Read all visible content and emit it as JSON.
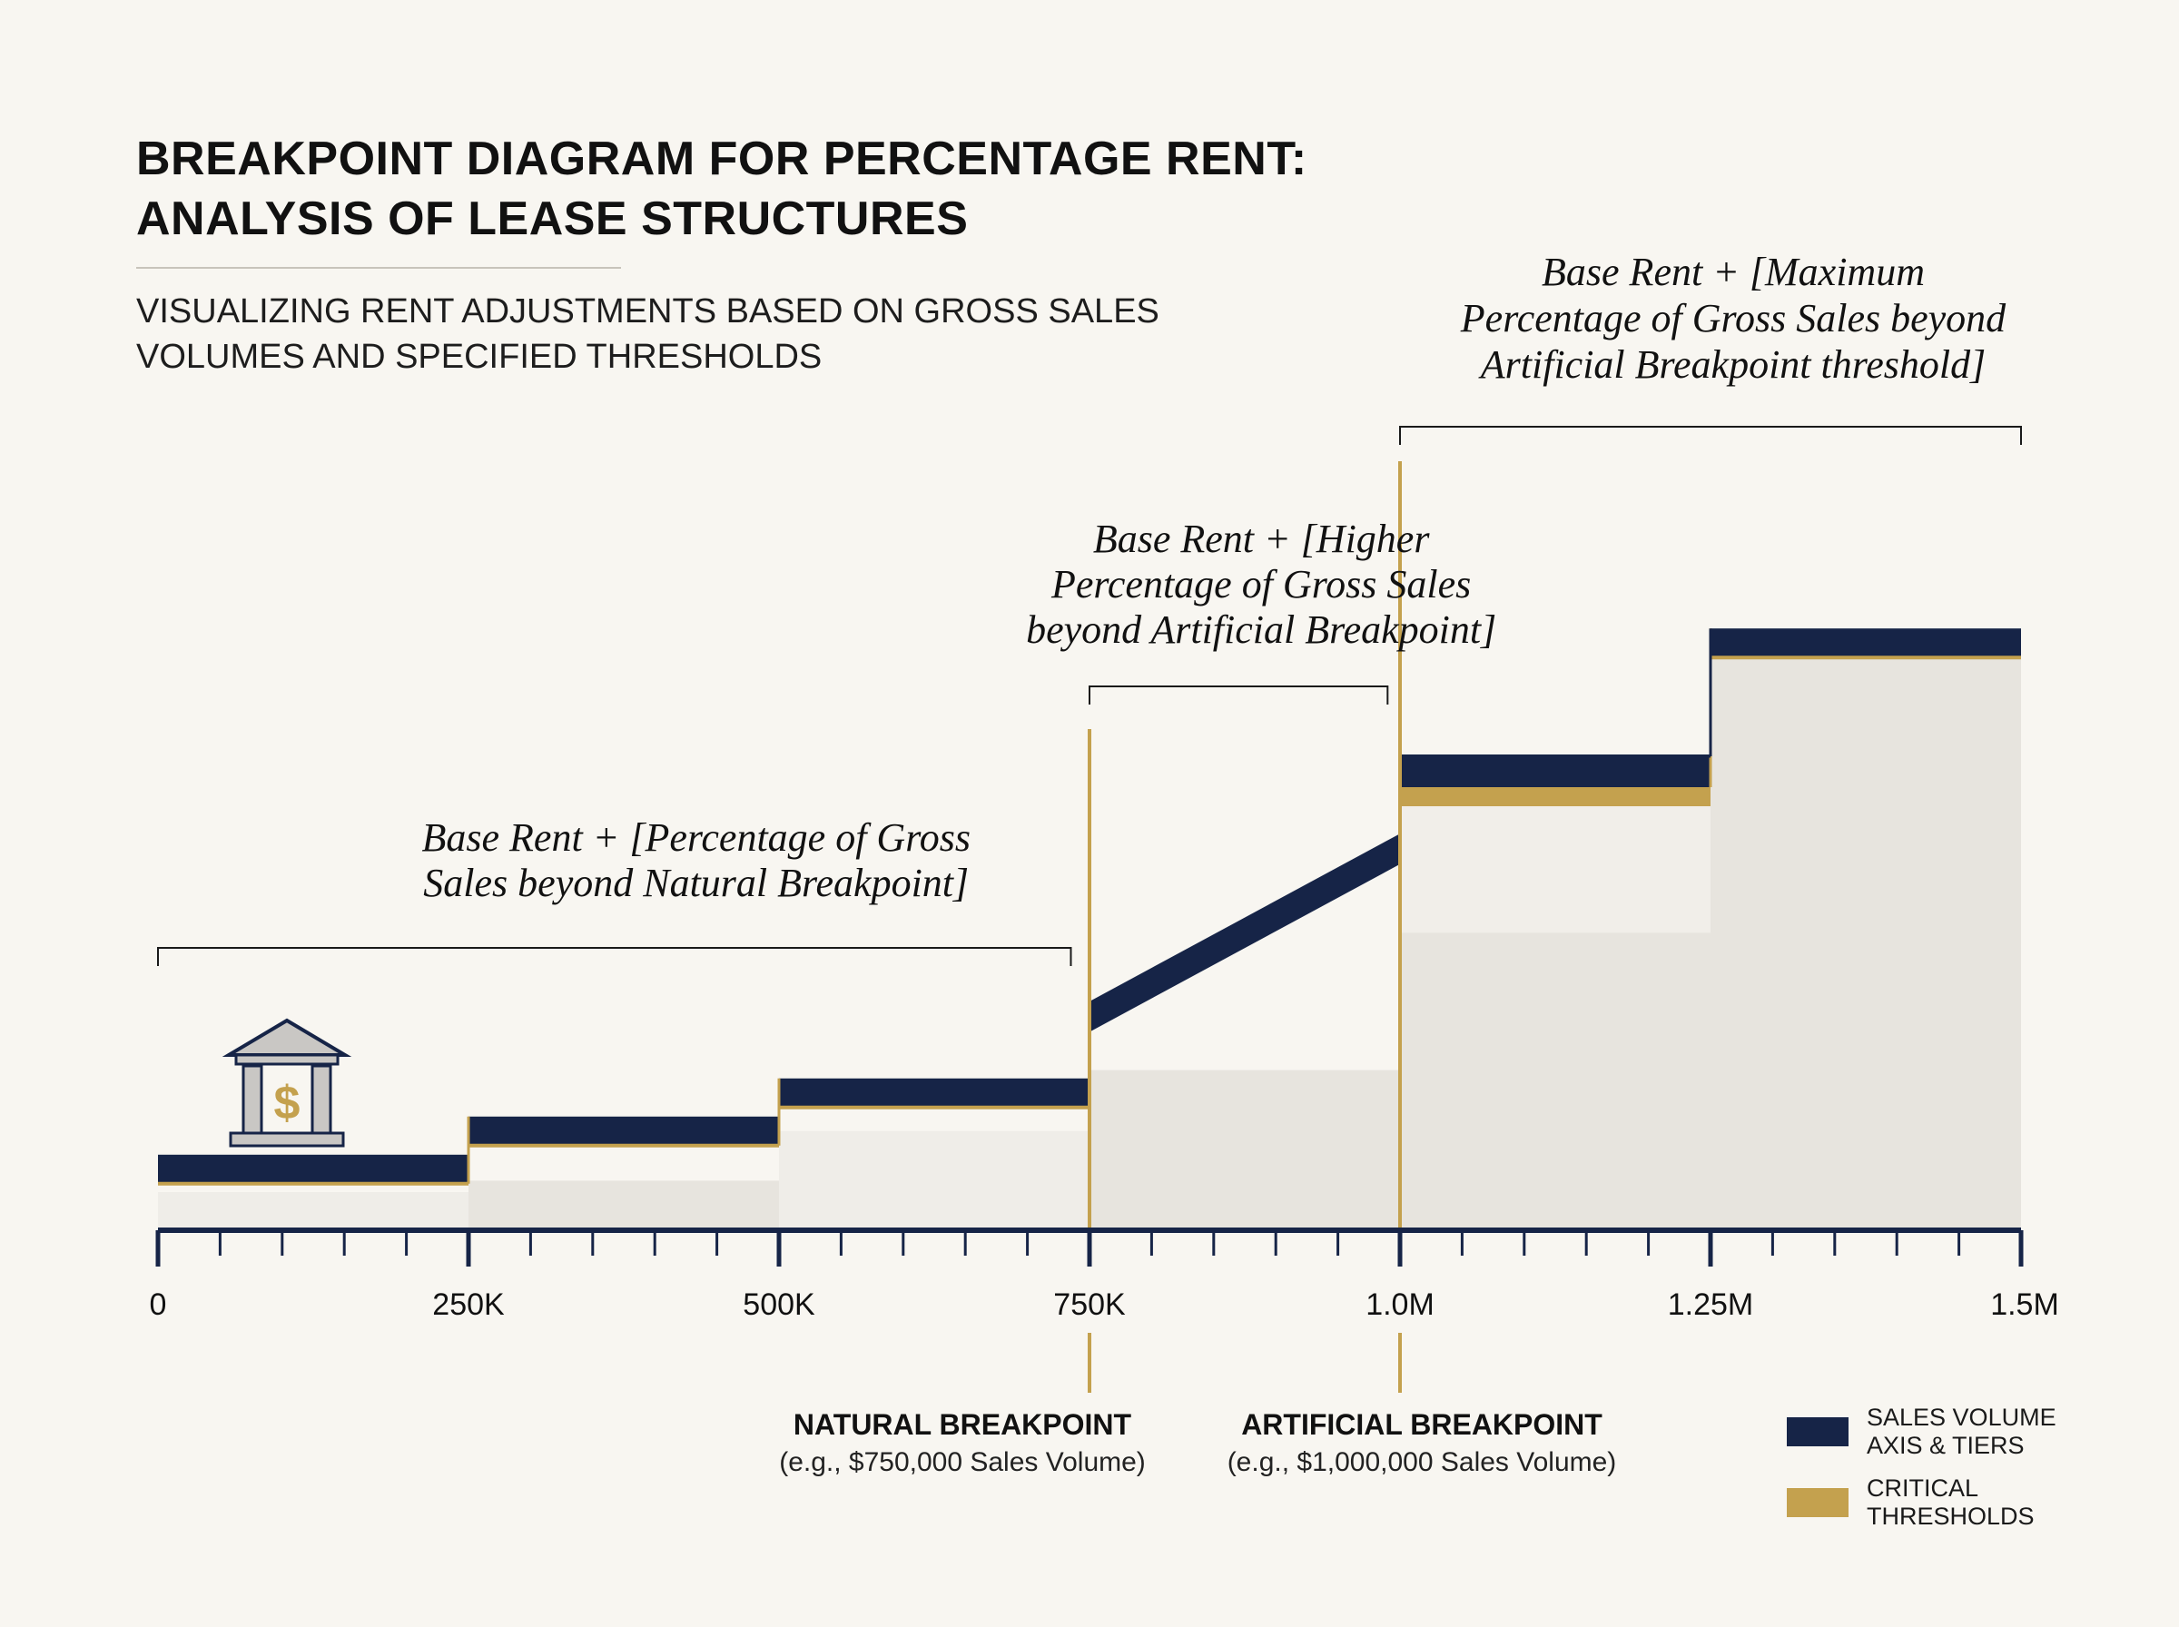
{
  "title_lines": [
    "BREAKPOINT DIAGRAM FOR PERCENTAGE RENT:",
    "ANALYSIS OF LEASE STRUCTURES"
  ],
  "subtitle_lines": [
    "VISUALIZING RENT ADJUSTMENTS BASED ON GROSS SALES",
    "VOLUMES AND SPECIFIED THRESHOLDS"
  ],
  "colors": {
    "background": "#f8f6f1",
    "navy": "#162447",
    "gold": "#c4a14e",
    "fill": "#e7e4de",
    "fill_light": "#efede8"
  },
  "icon": {
    "name": "bank-dollar-icon",
    "glyph": "$"
  },
  "legend": [
    {
      "name": "navy-swatch",
      "color": "#162447",
      "label": "SALES VOLUME AXIS & TIERS"
    },
    {
      "name": "gold-swatch",
      "color": "#c4a14e",
      "label": "CRITICAL THRESHOLDS"
    }
  ],
  "chart_data": {
    "type": "line",
    "x_unit": "gross sales ($)",
    "xlim": [
      0,
      1500000
    ],
    "x_ticks": [
      {
        "value": 0,
        "label": "0"
      },
      {
        "value": 250000,
        "label": "250K"
      },
      {
        "value": 500000,
        "label": "500K"
      },
      {
        "value": 750000,
        "label": "750K"
      },
      {
        "value": 1000000,
        "label": "1.0M"
      },
      {
        "value": 1250000,
        "label": "1.25M"
      },
      {
        "value": 1500000,
        "label": "1.5M"
      }
    ],
    "minor_tick_step": 50000,
    "y_axis_shown": false,
    "ylim": [
      0,
      100
    ],
    "tiers": [
      {
        "from": 0,
        "to": 250000,
        "rent_start": 8,
        "rent_end": 8
      },
      {
        "from": 250000,
        "to": 500000,
        "rent_start": 13,
        "rent_end": 13
      },
      {
        "from": 500000,
        "to": 750000,
        "rent_start": 18,
        "rent_end": 18
      },
      {
        "from": 750000,
        "to": 1000000,
        "rent_start": 28,
        "rent_end": 50
      },
      {
        "from": 1000000,
        "to": 1250000,
        "rent_start": 60,
        "rent_end": 60
      },
      {
        "from": 1250000,
        "to": 1500000,
        "rent_start": 77,
        "rent_end": 77
      }
    ],
    "gold_bands": [
      {
        "from": 1000000,
        "to": 1250000,
        "rent": 57.5
      }
    ],
    "background_fills": [
      {
        "from": 0,
        "to": 250000,
        "top": 5
      },
      {
        "from": 250000,
        "to": 500000,
        "top": 6.5
      },
      {
        "from": 500000,
        "to": 750000,
        "top": 13
      },
      {
        "from": 750000,
        "to": 1000000,
        "top": 21
      },
      {
        "from": 1000000,
        "to": 1250000,
        "top": 39
      },
      {
        "from": 1250000,
        "to": 1500000,
        "top": 76
      }
    ],
    "thresholds": [
      {
        "x": 750000,
        "label": "NATURAL BREAKPOINT",
        "note": "(e.g., $750,000 Sales Volume)"
      },
      {
        "x": 1000000,
        "label": "ARTIFICIAL BREAKPOINT",
        "note": "(e.g., $1,000,000 Sales Volume)"
      }
    ],
    "annotations": [
      {
        "from": 0,
        "to": 735000,
        "lines": [
          "Base Rent + [Percentage of Gross",
          "Sales beyond Natural Breakpoint]"
        ]
      },
      {
        "from": 750000,
        "to": 990000,
        "lines": [
          "Base Rent + [Higher",
          "Percentage of Gross Sales",
          "beyond Artificial Breakpoint]"
        ]
      },
      {
        "from": 1000000,
        "to": 1500000,
        "lines": [
          "Base Rent + [Maximum",
          "Percentage of Gross Sales beyond",
          "Artificial Breakpoint threshold]"
        ]
      }
    ]
  }
}
